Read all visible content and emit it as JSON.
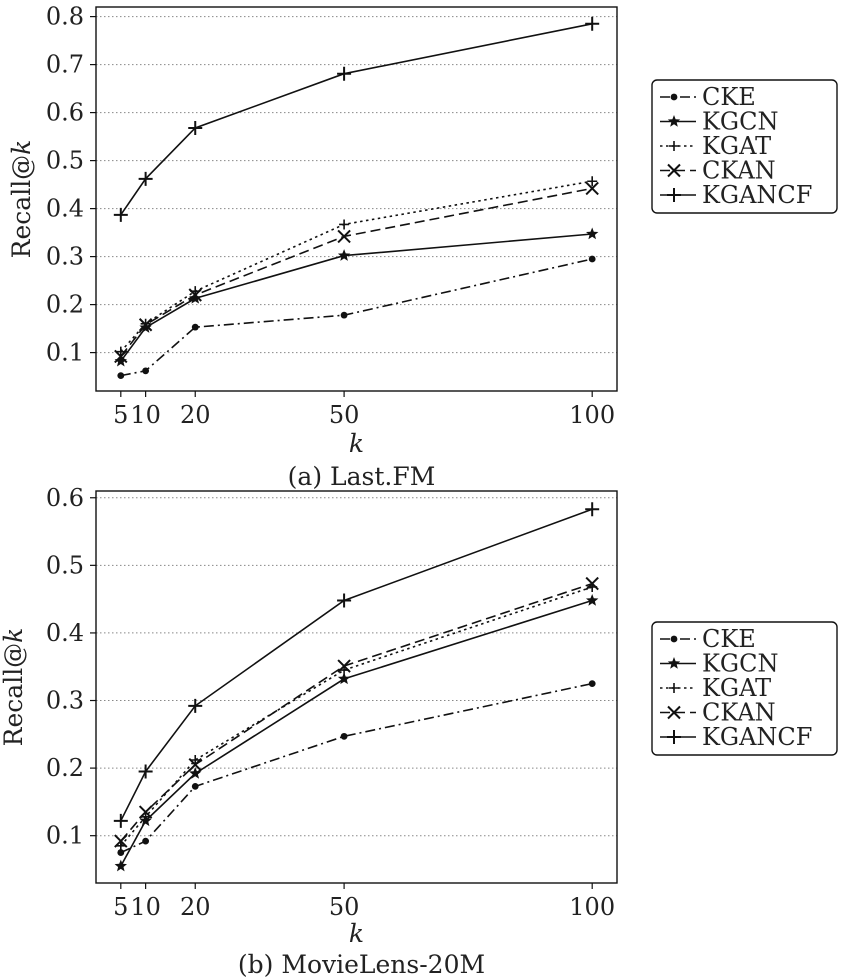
{
  "chart_data": [
    {
      "type": "line",
      "caption": "(a) Last.FM",
      "xlabel": "k",
      "ylabel": "Recall@k",
      "x": [
        5,
        10,
        20,
        50,
        100
      ],
      "xticks": [
        "5",
        "10",
        "20",
        "50",
        "100"
      ],
      "ylim": [
        0.02,
        0.82
      ],
      "yticks": [
        "0.1",
        "0.2",
        "0.3",
        "0.4",
        "0.5",
        "0.6",
        "0.7",
        "0.8"
      ],
      "grid": "horizontal dotted",
      "legend_position": "right",
      "series": [
        {
          "name": "CKE",
          "marker": "dot",
          "linestyle": "dashdot",
          "values": [
            0.052,
            0.062,
            0.153,
            0.178,
            0.295
          ]
        },
        {
          "name": "KGCN",
          "marker": "star",
          "linestyle": "solid",
          "values": [
            0.082,
            0.152,
            0.213,
            0.302,
            0.347
          ]
        },
        {
          "name": "KGAT",
          "marker": "plus-small",
          "linestyle": "dotted",
          "values": [
            0.102,
            0.16,
            0.228,
            0.367,
            0.457
          ]
        },
        {
          "name": "CKAN",
          "marker": "x",
          "linestyle": "dashed",
          "values": [
            0.092,
            0.158,
            0.22,
            0.342,
            0.442
          ]
        },
        {
          "name": "KGANCF",
          "marker": "plus",
          "linestyle": "solid",
          "values": [
            0.387,
            0.462,
            0.568,
            0.681,
            0.785
          ]
        }
      ]
    },
    {
      "type": "line",
      "caption": "(b) MovieLens-20M",
      "xlabel": "k",
      "ylabel": "Recall@k",
      "x": [
        5,
        10,
        20,
        50,
        100
      ],
      "xticks": [
        "5",
        "10",
        "20",
        "50",
        "100"
      ],
      "ylim": [
        0.03,
        0.61
      ],
      "yticks": [
        "0.1",
        "0.2",
        "0.3",
        "0.4",
        "0.5",
        "0.6"
      ],
      "grid": "horizontal dotted",
      "legend_position": "right",
      "series": [
        {
          "name": "CKE",
          "marker": "dot",
          "linestyle": "dashdot",
          "values": [
            0.075,
            0.092,
            0.173,
            0.247,
            0.325
          ]
        },
        {
          "name": "KGCN",
          "marker": "star",
          "linestyle": "solid",
          "values": [
            0.055,
            0.122,
            0.192,
            0.332,
            0.448
          ]
        },
        {
          "name": "KGAT",
          "marker": "plus-small",
          "linestyle": "dotted",
          "values": [
            0.085,
            0.128,
            0.212,
            0.345,
            0.468
          ]
        },
        {
          "name": "CKAN",
          "marker": "x",
          "linestyle": "dashed",
          "values": [
            0.092,
            0.135,
            0.205,
            0.351,
            0.473
          ]
        },
        {
          "name": "KGANCF",
          "marker": "plus",
          "linestyle": "solid",
          "values": [
            0.122,
            0.195,
            0.292,
            0.448,
            0.583
          ]
        }
      ]
    }
  ]
}
